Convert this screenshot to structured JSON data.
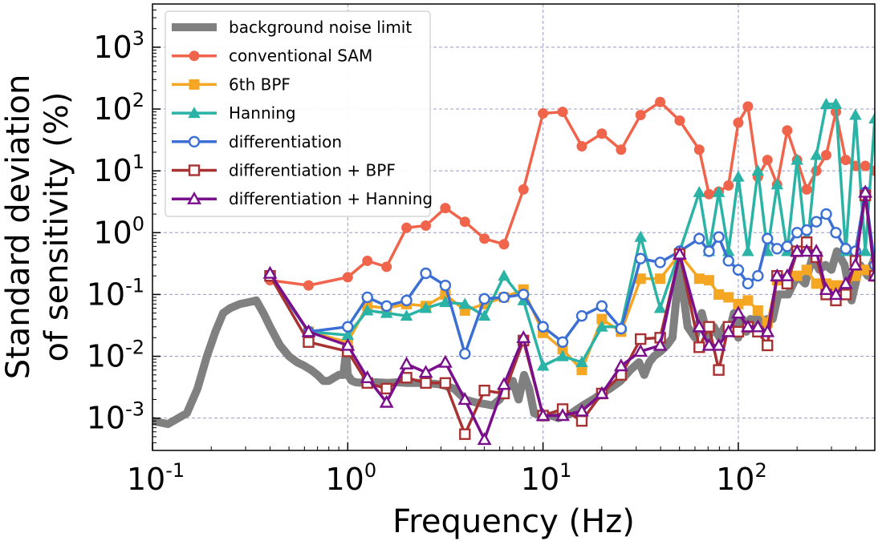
{
  "chart_data": {
    "type": "line",
    "xlabel": "Frequency (Hz)",
    "ylabel_lines": [
      "Standard deviation",
      "of sensitivity (%)"
    ],
    "xscale": "log",
    "yscale": "log",
    "xlim": [
      0.1,
      500
    ],
    "ylim": [
      0.0003,
      5000
    ],
    "grid": true,
    "legend_position": "top-left",
    "x_ticks": [
      {
        "value": 0.1,
        "base": "10",
        "exp": "-1"
      },
      {
        "value": 1,
        "base": "10",
        "exp": "0"
      },
      {
        "value": 10,
        "base": "10",
        "exp": "1"
      },
      {
        "value": 100,
        "base": "10",
        "exp": "2"
      }
    ],
    "y_ticks": [
      {
        "value": 0.001,
        "base": "10",
        "exp": "-3"
      },
      {
        "value": 0.01,
        "base": "10",
        "exp": "-2"
      },
      {
        "value": 0.1,
        "base": "10",
        "exp": "-1"
      },
      {
        "value": 1,
        "base": "10",
        "exp": "0"
      },
      {
        "value": 10,
        "base": "10",
        "exp": "1"
      },
      {
        "value": 100,
        "base": "10",
        "exp": "2"
      },
      {
        "value": 1000,
        "base": "10",
        "exp": "3"
      }
    ],
    "background": {
      "name": "background noise limit",
      "color": "#808080",
      "x": [
        0.1,
        0.12,
        0.15,
        0.17,
        0.19,
        0.21,
        0.23,
        0.25,
        0.28,
        0.31,
        0.34,
        0.37,
        0.4,
        0.45,
        0.5,
        0.55,
        0.6,
        0.65,
        0.7,
        0.75,
        0.8,
        0.85,
        0.9,
        0.95,
        0.98,
        1.0,
        1.05,
        1.1,
        1.2,
        1.4,
        1.6,
        1.8,
        2.0,
        2.5,
        3.0,
        3.5,
        4.0,
        4.5,
        5.0,
        5.5,
        6.0,
        6.5,
        7.0,
        7.5,
        8.0,
        8.5,
        9.0,
        10,
        11,
        12,
        13,
        14,
        15,
        16,
        17,
        18,
        20,
        22,
        25,
        28,
        31,
        33,
        35,
        37,
        40,
        43,
        46,
        50,
        55,
        60,
        65,
        70,
        75,
        80,
        85,
        90,
        95,
        100,
        105,
        110,
        115,
        120,
        125,
        130,
        140,
        150,
        160,
        180,
        200,
        220,
        240,
        260,
        280,
        300,
        320,
        350,
        380,
        420,
        460,
        500
      ],
      "y": [
        0.0009,
        0.0008,
        0.0012,
        0.003,
        0.01,
        0.025,
        0.05,
        0.06,
        0.07,
        0.075,
        0.08,
        0.05,
        0.03,
        0.015,
        0.01,
        0.008,
        0.007,
        0.006,
        0.005,
        0.004,
        0.004,
        0.0045,
        0.005,
        0.005,
        0.012,
        0.005,
        0.004,
        0.0038,
        0.0037,
        0.0038,
        0.0037,
        0.0038,
        0.0037,
        0.0037,
        0.0035,
        0.003,
        0.002,
        0.0018,
        0.0017,
        0.0016,
        0.002,
        0.003,
        0.004,
        0.002,
        0.005,
        0.003,
        0.0012,
        0.0011,
        0.0011,
        0.001,
        0.0011,
        0.0012,
        0.0014,
        0.0016,
        0.0018,
        0.002,
        0.0025,
        0.003,
        0.004,
        0.006,
        0.008,
        0.005,
        0.008,
        0.01,
        0.012,
        0.015,
        0.02,
        0.3,
        0.03,
        0.02,
        0.05,
        0.02,
        0.03,
        0.02,
        0.03,
        0.025,
        0.05,
        0.02,
        0.04,
        0.025,
        0.04,
        0.03,
        0.05,
        0.03,
        0.04,
        0.04,
        0.1,
        0.1,
        0.2,
        0.15,
        0.4,
        0.25,
        0.3,
        0.25,
        0.5,
        0.3,
        0.08,
        0.3,
        0.2,
        0.4
      ]
    },
    "series": [
      {
        "name": "conventional SAM",
        "color": "#f0644c",
        "marker": "circle",
        "filled": true,
        "x": [
          0.4,
          0.63,
          1.0,
          1.26,
          1.58,
          2.0,
          2.51,
          3.16,
          3.98,
          5.01,
          6.31,
          7.94,
          10,
          12.6,
          15.8,
          20,
          25.1,
          31.6,
          39.8,
          50.1,
          63.1,
          70.8,
          79.4,
          89.1,
          100,
          112,
          126,
          141,
          158,
          178,
          200,
          224,
          251,
          282,
          316,
          355,
          398,
          447,
          500
        ],
        "y": [
          0.17,
          0.14,
          0.19,
          0.35,
          0.28,
          1.2,
          1.3,
          2.5,
          1.5,
          0.8,
          0.65,
          5,
          85,
          90,
          25,
          40,
          22,
          80,
          130,
          65,
          22,
          4.2,
          4.6,
          5.8,
          60,
          110,
          8,
          15,
          6,
          45,
          15,
          5,
          10,
          18,
          90,
          15,
          12,
          12,
          10
        ]
      },
      {
        "name": "6th BPF",
        "color": "#f5a623",
        "marker": "square",
        "filled": true,
        "x": [
          0.4,
          0.63,
          1.0,
          1.26,
          1.58,
          2.0,
          2.51,
          3.16,
          3.98,
          5.01,
          6.31,
          7.94,
          10,
          12.6,
          15.8,
          20,
          25.1,
          31.6,
          39.8,
          50.1,
          63.1,
          70.8,
          79.4,
          89.1,
          100,
          112,
          126,
          141,
          158,
          178,
          200,
          224,
          251,
          282,
          316,
          355,
          398,
          447,
          500
        ],
        "y": [
          0.2,
          0.025,
          0.017,
          0.065,
          0.06,
          0.07,
          0.065,
          0.1,
          0.055,
          0.07,
          0.09,
          0.12,
          0.024,
          0.013,
          0.006,
          0.04,
          0.025,
          0.18,
          0.18,
          0.45,
          0.18,
          0.17,
          0.1,
          0.09,
          0.07,
          0.08,
          0.055,
          0.035,
          0.17,
          0.18,
          0.2,
          0.25,
          0.15,
          0.15,
          0.14,
          0.14,
          0.2,
          0.25,
          0.3
        ]
      },
      {
        "name": "Hanning",
        "color": "#2bb3a6",
        "marker": "triangle",
        "filled": true,
        "x": [
          0.4,
          0.63,
          1.0,
          1.26,
          1.58,
          2.0,
          2.51,
          3.16,
          3.98,
          5.01,
          6.31,
          7.94,
          10,
          12.6,
          15.8,
          20,
          25.1,
          31.6,
          39.8,
          50.1,
          63.1,
          70.8,
          79.4,
          89.1,
          100,
          112,
          126,
          141,
          158,
          178,
          200,
          224,
          251,
          282,
          316,
          355,
          398,
          447,
          500
        ],
        "y": [
          0.2,
          0.025,
          0.022,
          0.055,
          0.05,
          0.045,
          0.06,
          0.075,
          0.07,
          0.045,
          0.2,
          0.08,
          0.007,
          0.01,
          0.008,
          0.03,
          0.03,
          0.85,
          0.06,
          0.5,
          4.5,
          0.5,
          4.5,
          0.5,
          8,
          0.5,
          10,
          0.5,
          6,
          0.5,
          15,
          0.5,
          18,
          120,
          120,
          0.5,
          80,
          0.5,
          70
        ]
      },
      {
        "name": "differentiation",
        "color": "#3b6fd4",
        "marker": "circle",
        "filled": false,
        "x": [
          0.4,
          0.63,
          1.0,
          1.26,
          1.58,
          2.0,
          2.51,
          3.16,
          3.98,
          5.01,
          6.31,
          7.94,
          10,
          12.6,
          15.8,
          20,
          25.1,
          31.6,
          39.8,
          50.1,
          63.1,
          70.8,
          79.4,
          89.1,
          100,
          112,
          126,
          141,
          158,
          178,
          200,
          224,
          251,
          282,
          316,
          355,
          398,
          447,
          500
        ],
        "y": [
          0.2,
          0.025,
          0.03,
          0.09,
          0.065,
          0.08,
          0.22,
          0.14,
          0.011,
          0.085,
          0.09,
          0.1,
          0.03,
          0.017,
          0.045,
          0.065,
          0.028,
          0.38,
          0.33,
          0.5,
          0.8,
          0.5,
          0.85,
          0.35,
          0.25,
          0.15,
          0.2,
          0.8,
          0.55,
          0.6,
          1.0,
          1.1,
          1.5,
          2.0,
          1.0,
          0.55,
          0.5,
          4.5,
          0.3
        ]
      },
      {
        "name": "differentiation + BPF",
        "color": "#a83232",
        "marker": "square",
        "filled": false,
        "x": [
          0.4,
          0.63,
          1.0,
          1.26,
          1.58,
          2.0,
          2.51,
          3.16,
          3.98,
          5.01,
          6.31,
          7.94,
          10,
          12.6,
          15.8,
          20,
          25.1,
          31.6,
          39.8,
          50.1,
          63.1,
          70.8,
          79.4,
          89.1,
          100,
          112,
          126,
          141,
          158,
          178,
          200,
          224,
          251,
          282,
          316,
          355,
          398,
          447,
          500
        ],
        "y": [
          0.2,
          0.017,
          0.012,
          0.0037,
          0.003,
          0.0045,
          0.0037,
          0.0037,
          0.00055,
          0.0028,
          0.0025,
          0.018,
          0.0011,
          0.0014,
          0.0009,
          0.0025,
          0.005,
          0.019,
          0.02,
          0.45,
          0.014,
          0.03,
          0.006,
          0.03,
          0.025,
          0.03,
          0.025,
          0.015,
          0.2,
          0.15,
          0.5,
          0.7,
          0.4,
          0.1,
          0.08,
          0.1,
          0.35,
          4,
          0.2
        ]
      },
      {
        "name": "differentiation + Hanning",
        "color": "#7a0f8c",
        "marker": "triangle",
        "filled": false,
        "x": [
          0.4,
          0.63,
          1.0,
          1.26,
          1.58,
          2.0,
          2.51,
          3.16,
          3.98,
          5.01,
          6.31,
          7.94,
          10,
          12.6,
          15.8,
          20,
          25.1,
          31.6,
          39.8,
          50.1,
          63.1,
          70.8,
          79.4,
          89.1,
          100,
          112,
          126,
          141,
          158,
          178,
          200,
          224,
          251,
          282,
          316,
          355,
          398,
          447,
          500
        ],
        "y": [
          0.22,
          0.025,
          0.015,
          0.0045,
          0.0018,
          0.0075,
          0.0055,
          0.008,
          0.002,
          0.00045,
          0.0035,
          0.02,
          0.0011,
          0.0011,
          0.0013,
          0.0025,
          0.007,
          0.012,
          0.015,
          0.45,
          0.03,
          0.015,
          0.015,
          0.025,
          0.05,
          0.03,
          0.03,
          0.025,
          0.2,
          0.2,
          0.5,
          0.5,
          0.5,
          0.12,
          0.1,
          0.15,
          0.3,
          4.5,
          0.2
        ]
      }
    ]
  }
}
